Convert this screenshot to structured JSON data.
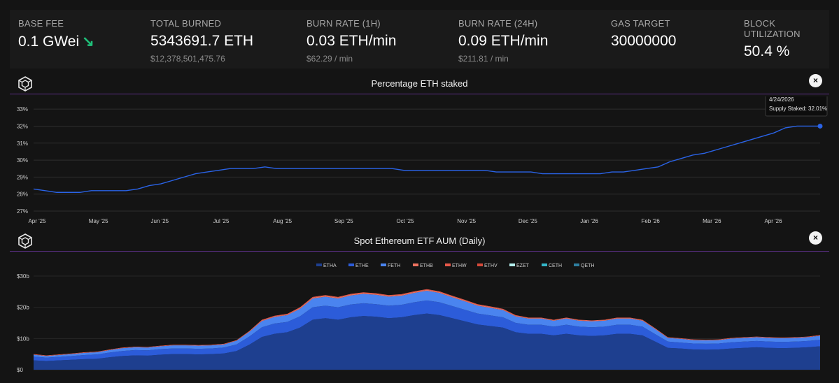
{
  "stats": [
    {
      "label": "BASE FEE",
      "value": "0.1 GWei",
      "sub": "",
      "trend": "down"
    },
    {
      "label": "TOTAL BURNED",
      "value": "5343691.7 ETH",
      "sub": "$12,378,501,475.76"
    },
    {
      "label": "BURN RATE (1H)",
      "value": "0.03 ETH/min",
      "sub": "$62.29 / min"
    },
    {
      "label": "BURN RATE (24H)",
      "value": "0.09 ETH/min",
      "sub": "$211.81 / min"
    },
    {
      "label": "GAS TARGET",
      "value": "30000000",
      "sub": ""
    },
    {
      "label": "BLOCK UTILIZATION",
      "value": "50.4 %",
      "sub": ""
    }
  ],
  "icons": {
    "trend": "arrow-down-right-icon",
    "logo": "cube-logo-icon",
    "close": "close-icon"
  },
  "colors": {
    "line": "#2a63e6",
    "grid": "#2e2e2e",
    "divider": "#5b2f87",
    "up": "#1fc17a",
    "etha": "#1e3f8f",
    "ethe": "#2c5cd9",
    "feth": "#4a84ef",
    "ethb": "#ef7360",
    "ethw": "#e8584a",
    "ethv": "#d64a3a",
    "ezet": "#b5f0ee",
    "ceth": "#34b6c9",
    "qeth": "#2e7fa0"
  },
  "close_glyph": "×",
  "chart_data": [
    {
      "type": "line",
      "title": "Percentage ETH staked",
      "y_ticks": [
        "27%",
        "28%",
        "29%",
        "30%",
        "31%",
        "32%",
        "33%"
      ],
      "ylim": [
        27,
        33.5
      ],
      "x_ticks": [
        "Apr '25",
        "May '25",
        "Jun '25",
        "Jul '25",
        "Aug '25",
        "Sep '25",
        "Oct '25",
        "Nov '25",
        "Dec '25",
        "Jan '26",
        "Feb '26",
        "Mar '26",
        "Apr '26"
      ],
      "series": [
        {
          "name": "Supply Staked",
          "values": [
            28.3,
            28.2,
            28.1,
            28.1,
            28.1,
            28.2,
            28.2,
            28.2,
            28.2,
            28.3,
            28.5,
            28.6,
            28.8,
            29.0,
            29.2,
            29.3,
            29.4,
            29.5,
            29.5,
            29.5,
            29.6,
            29.5,
            29.5,
            29.5,
            29.5,
            29.5,
            29.5,
            29.5,
            29.5,
            29.5,
            29.5,
            29.5,
            29.4,
            29.4,
            29.4,
            29.4,
            29.4,
            29.4,
            29.4,
            29.4,
            29.3,
            29.3,
            29.3,
            29.3,
            29.2,
            29.2,
            29.2,
            29.2,
            29.2,
            29.2,
            29.3,
            29.3,
            29.4,
            29.5,
            29.6,
            29.9,
            30.1,
            30.3,
            30.4,
            30.6,
            30.8,
            31.0,
            31.2,
            31.4,
            31.6,
            31.9,
            32.0,
            32.0,
            32.0
          ]
        }
      ],
      "tooltip": {
        "date": "4/24/2026",
        "label": "Supply Staked: 32.01%"
      }
    },
    {
      "type": "area",
      "title": "Spot Ethereum ETF AUM (Daily)",
      "legend": [
        "ETHA",
        "ETHE",
        "FETH",
        "ETHB",
        "ETHW",
        "ETHV",
        "EZET",
        "CETH",
        "QETH"
      ],
      "y_ticks": [
        "$0",
        "$10b",
        "$20b",
        "$30b"
      ],
      "ylim": [
        0,
        30
      ],
      "series": [
        {
          "name": "ETHA",
          "values": [
            3.0,
            2.8,
            3.0,
            3.2,
            3.4,
            3.5,
            4.0,
            4.4,
            4.6,
            4.5,
            4.8,
            5.0,
            5.0,
            4.9,
            5.0,
            5.2,
            6.0,
            8.0,
            10.5,
            11.5,
            12.0,
            13.5,
            16.0,
            16.5,
            16.0,
            16.8,
            17.2,
            17.0,
            16.5,
            16.8,
            17.5,
            18.0,
            17.5,
            16.5,
            15.5,
            14.5,
            14.0,
            13.5,
            12.0,
            11.5,
            11.5,
            11.0,
            11.5,
            11.0,
            10.8,
            11.0,
            11.5,
            11.5,
            11.0,
            9.0,
            7.0,
            6.8,
            6.5,
            6.4,
            6.5,
            6.8,
            7.0,
            7.2,
            7.0,
            6.9,
            7.0,
            7.2,
            7.5
          ]
        },
        {
          "name": "ETHE",
          "values": [
            1.2,
            1.1,
            1.1,
            1.2,
            1.3,
            1.4,
            1.5,
            1.6,
            1.7,
            1.7,
            1.8,
            1.8,
            1.8,
            1.8,
            1.8,
            1.9,
            2.1,
            2.6,
            3.1,
            3.3,
            3.3,
            3.6,
            4.0,
            4.0,
            4.0,
            4.1,
            4.1,
            4.0,
            4.0,
            4.0,
            4.1,
            4.2,
            4.1,
            3.9,
            3.7,
            3.5,
            3.4,
            3.3,
            3.0,
            2.9,
            2.9,
            2.8,
            2.9,
            2.8,
            2.8,
            2.8,
            2.9,
            2.9,
            2.8,
            2.4,
            2.0,
            1.9,
            1.9,
            1.9,
            1.9,
            2.0,
            2.0,
            2.0,
            2.0,
            2.0,
            2.0,
            2.0,
            2.1
          ]
        },
        {
          "name": "FETH",
          "values": [
            0.6,
            0.5,
            0.6,
            0.6,
            0.7,
            0.7,
            0.8,
            0.9,
            0.9,
            0.9,
            0.9,
            1.0,
            1.0,
            1.0,
            1.0,
            1.0,
            1.2,
            1.5,
            2.0,
            2.1,
            2.2,
            2.4,
            2.8,
            2.9,
            2.8,
            2.9,
            3.0,
            3.0,
            2.9,
            2.9,
            3.0,
            3.1,
            3.0,
            2.8,
            2.7,
            2.5,
            2.4,
            2.3,
            2.1,
            2.0,
            2.0,
            1.9,
            2.0,
            1.9,
            1.9,
            1.9,
            2.0,
            2.0,
            1.9,
            1.6,
            1.2,
            1.2,
            1.1,
            1.1,
            1.1,
            1.2,
            1.2,
            1.2,
            1.2,
            1.2,
            1.2,
            1.2,
            1.3
          ]
        },
        {
          "name": "ETHB",
          "values": [
            0.1,
            0.1,
            0.1,
            0.1,
            0.1,
            0.1,
            0.1,
            0.1,
            0.1,
            0.1,
            0.1,
            0.1,
            0.1,
            0.1,
            0.1,
            0.1,
            0.1,
            0.2,
            0.2,
            0.2,
            0.2,
            0.3,
            0.3,
            0.3,
            0.3,
            0.3,
            0.3,
            0.3,
            0.3,
            0.3,
            0.3,
            0.3,
            0.3,
            0.3,
            0.3,
            0.3,
            0.3,
            0.2,
            0.2,
            0.2,
            0.2,
            0.2,
            0.2,
            0.2,
            0.2,
            0.2,
            0.2,
            0.2,
            0.2,
            0.2,
            0.1,
            0.1,
            0.1,
            0.1,
            0.1,
            0.1,
            0.1,
            0.1,
            0.1,
            0.1,
            0.1,
            0.1,
            0.1
          ]
        },
        {
          "name": "ETHW",
          "values": [
            0.1,
            0.1,
            0.1,
            0.1,
            0.1,
            0.1,
            0.1,
            0.1,
            0.1,
            0.1,
            0.1,
            0.1,
            0.1,
            0.1,
            0.1,
            0.1,
            0.1,
            0.1,
            0.2,
            0.2,
            0.2,
            0.2,
            0.2,
            0.2,
            0.2,
            0.2,
            0.2,
            0.2,
            0.2,
            0.2,
            0.2,
            0.2,
            0.2,
            0.2,
            0.2,
            0.2,
            0.2,
            0.2,
            0.2,
            0.1,
            0.1,
            0.1,
            0.1,
            0.1,
            0.1,
            0.1,
            0.1,
            0.1,
            0.1,
            0.1,
            0.1,
            0.1,
            0.1,
            0.1,
            0.1,
            0.1,
            0.1,
            0.1,
            0.1,
            0.1,
            0.1,
            0.1,
            0.1
          ]
        }
      ]
    }
  ]
}
